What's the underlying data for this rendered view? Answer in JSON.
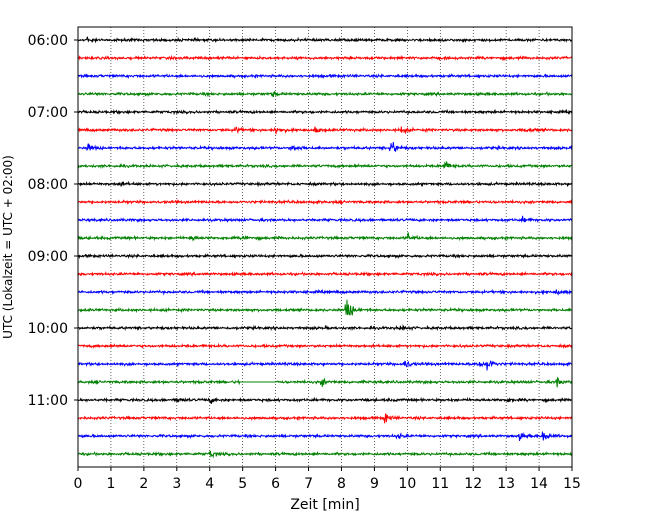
{
  "chart_data": {
    "type": "line",
    "title": "",
    "xlabel": "Zeit  [min]",
    "ylabel": "UTC (Lokalzeit = UTC + 02:00)",
    "xlim": [
      0,
      15
    ],
    "x_ticks": [
      "0",
      "1",
      "2",
      "3",
      "4",
      "5",
      "6",
      "7",
      "8",
      "9",
      "10",
      "11",
      "12",
      "13",
      "14",
      "15"
    ],
    "y_ticks": [
      "06:00",
      "07:00",
      "08:00",
      "09:00",
      "10:00",
      "11:00"
    ],
    "grid": true,
    "line_colors": [
      "#000000",
      "#ff0000",
      "#0000ff",
      "#008000"
    ],
    "traces": [
      {
        "start": "06:00",
        "events": [
          {
            "t": 0.25,
            "amp": 5
          }
        ]
      },
      {
        "start": "06:15",
        "events": []
      },
      {
        "start": "06:30",
        "events": []
      },
      {
        "start": "06:45",
        "events": [
          {
            "t": 5.9,
            "amp": 3
          }
        ]
      },
      {
        "start": "07:00",
        "events": []
      },
      {
        "start": "07:15",
        "events": [
          {
            "t": 4.8,
            "amp": 5
          },
          {
            "t": 6.0,
            "amp": 7
          },
          {
            "t": 7.2,
            "amp": 4
          },
          {
            "t": 9.8,
            "amp": 6
          },
          {
            "t": 13.6,
            "amp": 4
          }
        ]
      },
      {
        "start": "07:30",
        "events": [
          {
            "t": 0.3,
            "amp": 6
          },
          {
            "t": 6.5,
            "amp": 6
          },
          {
            "t": 9.5,
            "amp": 14
          }
        ]
      },
      {
        "start": "07:45",
        "events": [
          {
            "t": 11.1,
            "amp": 10
          }
        ]
      },
      {
        "start": "08:00",
        "events": [
          {
            "t": 1.2,
            "amp": 5
          }
        ]
      },
      {
        "start": "08:15",
        "events": []
      },
      {
        "start": "08:30",
        "events": [
          {
            "t": 13.5,
            "amp": 3
          }
        ]
      },
      {
        "start": "08:45",
        "events": [
          {
            "t": 3.4,
            "amp": 5
          },
          {
            "t": 5.0,
            "amp": 4
          },
          {
            "t": 10.0,
            "amp": 7
          }
        ]
      },
      {
        "start": "09:00",
        "events": []
      },
      {
        "start": "09:15",
        "events": []
      },
      {
        "start": "09:30",
        "events": [
          {
            "t": 14.5,
            "amp": 5
          }
        ]
      },
      {
        "start": "09:45",
        "events": [
          {
            "t": 8.15,
            "amp": 22
          }
        ]
      },
      {
        "start": "10:00",
        "events": [
          {
            "t": 9.8,
            "amp": 4
          }
        ]
      },
      {
        "start": "10:15",
        "events": []
      },
      {
        "start": "10:30",
        "events": [
          {
            "t": 9.9,
            "amp": 9
          },
          {
            "t": 12.1,
            "amp": 9
          },
          {
            "t": 12.4,
            "amp": 12
          }
        ]
      },
      {
        "start": "10:45",
        "events": [
          {
            "t": 4.9,
            "amp": 8
          },
          {
            "t": 7.4,
            "amp": 6
          },
          {
            "t": 14.5,
            "amp": 9
          }
        ],
        "gap": [
          4.9,
          6.0
        ]
      },
      {
        "start": "11:00",
        "events": [
          {
            "t": 3.0,
            "amp": 5
          },
          {
            "t": 4.0,
            "amp": 5
          },
          {
            "t": 13.0,
            "amp": 4
          }
        ]
      },
      {
        "start": "11:15",
        "events": [
          {
            "t": 9.3,
            "amp": 8
          }
        ]
      },
      {
        "start": "11:30",
        "events": [
          {
            "t": 9.7,
            "amp": 5
          },
          {
            "t": 13.4,
            "amp": 5
          },
          {
            "t": 14.1,
            "amp": 10
          }
        ]
      },
      {
        "start": "11:45",
        "events": [
          {
            "t": 4.0,
            "amp": 6
          }
        ]
      }
    ]
  }
}
